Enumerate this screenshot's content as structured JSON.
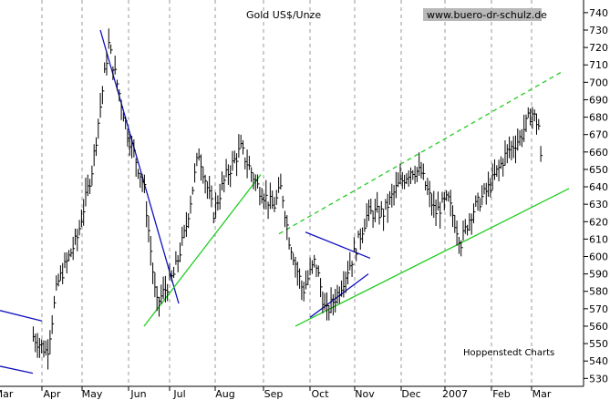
{
  "chart_data": {
    "type": "ohlc",
    "title": "Gold US$/Unze",
    "source_label": "www.buero-dr-schulz.de",
    "footer_label": "Hoppenstedt Charts",
    "ylim": [
      520,
      745
    ],
    "y_ticks": [
      530,
      540,
      550,
      560,
      570,
      580,
      590,
      600,
      610,
      620,
      630,
      640,
      650,
      660,
      670,
      680,
      690,
      700,
      710,
      720,
      730,
      740
    ],
    "x_ticks": [
      "Mar",
      "Apr",
      "May",
      "Jun",
      "Jul",
      "Aug",
      "Sep",
      "Oct",
      "Nov",
      "Dec",
      "2007",
      "Feb",
      "Mar"
    ],
    "grid": true,
    "colors": {
      "price": "#000000",
      "trend_blue": "#1010c0",
      "trend_green": "#22cc22",
      "grid": "#999999"
    },
    "trend_lines": [
      {
        "color": "blue",
        "style": "solid",
        "from": [
          "Mar",
          569
        ],
        "to": [
          "Apr",
          563
        ]
      },
      {
        "color": "blue",
        "style": "solid",
        "from": [
          "Mar",
          537
        ],
        "to": [
          "Apr",
          533
        ]
      },
      {
        "color": "blue",
        "style": "solid",
        "from": [
          "May",
          730
        ],
        "to": [
          "Jul",
          573
        ]
      },
      {
        "color": "green",
        "style": "solid",
        "from": [
          "Jun",
          560
        ],
        "to": [
          "Aug",
          647
        ]
      },
      {
        "color": "green",
        "style": "dashed",
        "from": [
          "Sep",
          613
        ],
        "to": [
          "Mar",
          706
        ]
      },
      {
        "color": "green",
        "style": "solid",
        "from": [
          "Oct",
          560
        ],
        "to": [
          "Mar",
          639
        ]
      },
      {
        "color": "blue",
        "style": "solid",
        "from": [
          "Oct",
          614
        ],
        "to": [
          "Nov",
          599
        ]
      },
      {
        "color": "blue",
        "style": "solid",
        "from": [
          "Oct",
          565
        ],
        "to": [
          "Nov",
          590
        ]
      }
    ],
    "price_anchors": [
      [
        "2006-03-20",
        554
      ],
      [
        "2006-03-29",
        545
      ],
      [
        "2006-04-05",
        584
      ],
      [
        "2006-04-20",
        611
      ],
      [
        "2006-05-01",
        650
      ],
      [
        "2006-05-12",
        722
      ],
      [
        "2006-05-25",
        670
      ],
      [
        "2006-06-05",
        640
      ],
      [
        "2006-06-14",
        572
      ],
      [
        "2006-06-27",
        590
      ],
      [
        "2006-07-05",
        615
      ],
      [
        "2006-07-14",
        660
      ],
      [
        "2006-07-24",
        625
      ],
      [
        "2006-08-01",
        645
      ],
      [
        "2006-08-11",
        662
      ],
      [
        "2006-08-22",
        640
      ],
      [
        "2006-09-01",
        628
      ],
      [
        "2006-09-06",
        640
      ],
      [
        "2006-09-11",
        610
      ],
      [
        "2006-09-20",
        580
      ],
      [
        "2006-09-28",
        598
      ],
      [
        "2006-10-05",
        567
      ],
      [
        "2006-10-14",
        580
      ],
      [
        "2006-10-24",
        600
      ],
      [
        "2006-11-03",
        625
      ],
      [
        "2006-11-13",
        625
      ],
      [
        "2006-11-22",
        640
      ],
      [
        "2006-12-01",
        650
      ],
      [
        "2006-12-08",
        648
      ],
      [
        "2006-12-18",
        625
      ],
      [
        "2006-12-27",
        633
      ],
      [
        "2007-01-05",
        608
      ],
      [
        "2007-01-12",
        625
      ],
      [
        "2007-01-24",
        640
      ],
      [
        "2007-02-05",
        660
      ],
      [
        "2007-02-14",
        668
      ],
      [
        "2007-02-22",
        683
      ],
      [
        "2007-02-27",
        675
      ],
      [
        "2007-03-01",
        648
      ]
    ]
  }
}
